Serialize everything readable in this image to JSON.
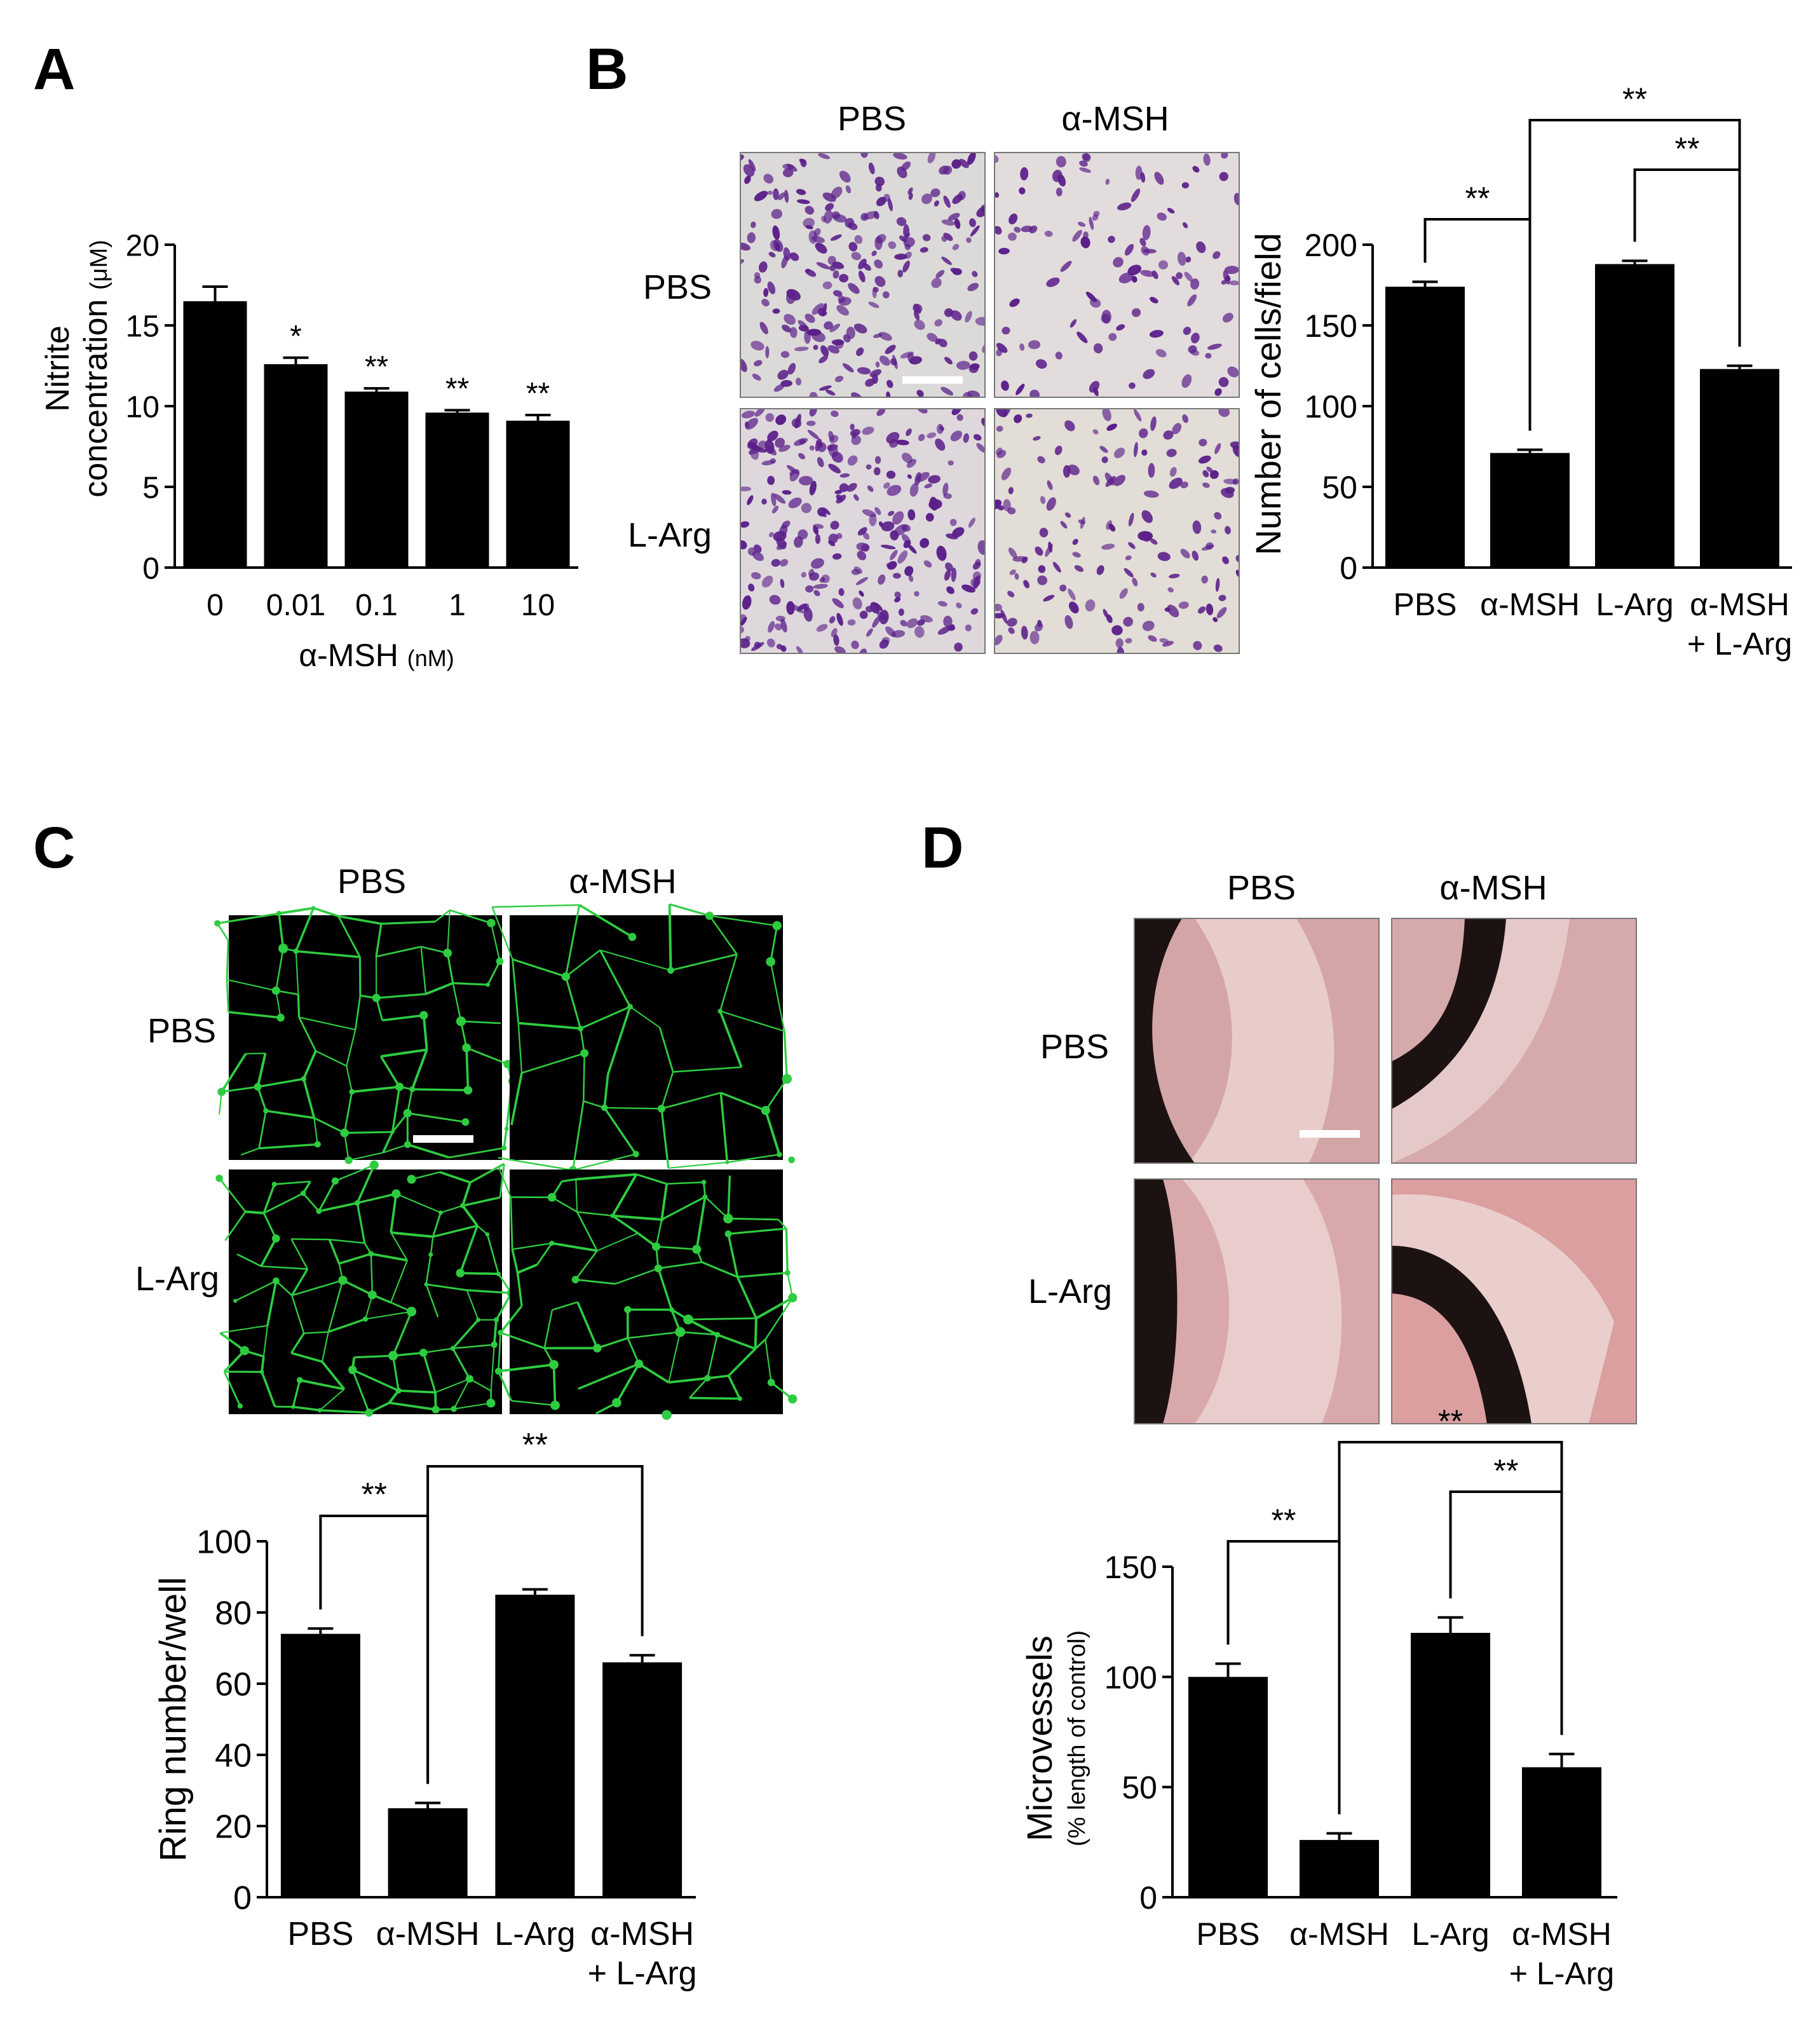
{
  "panels": {
    "A": {
      "letter": "A"
    },
    "B": {
      "letter": "B",
      "col_labels": [
        "PBS",
        "α-MSH"
      ],
      "row_labels": [
        "PBS",
        "L-Arg"
      ]
    },
    "C": {
      "letter": "C",
      "col_labels": [
        "PBS",
        "α-MSH"
      ],
      "row_labels": [
        "PBS",
        "L-Arg"
      ]
    },
    "D": {
      "letter": "D",
      "col_labels": [
        "PBS",
        "α-MSH"
      ],
      "row_labels": [
        "PBS",
        "L-Arg"
      ]
    }
  },
  "colors": {
    "bar": "#000000",
    "crystal_violet_bg": "#dcdad8",
    "crystal_violet_stain": "#5b1f8a",
    "fluorescence_bg": "#000000",
    "fluorescence_signal": "#2ecc40",
    "aortic_ring_bg": "#d9a7a7",
    "aortic_ring_tissue": "#1a1010",
    "scale_bar": "#ffffff"
  },
  "chart_data": [
    {
      "id": "A",
      "type": "bar",
      "categories": [
        "0",
        "0.01",
        "0.1",
        "1",
        "10"
      ],
      "values": [
        16.5,
        12.6,
        10.9,
        9.6,
        9.1
      ],
      "errors": [
        0.9,
        0.4,
        0.2,
        0.15,
        0.35
      ],
      "annotations": [
        "",
        "*",
        "**",
        "**",
        "**"
      ],
      "ylabel_lines": [
        "Nitrite",
        "concentration"
      ],
      "ylabel_unit": "(μM)",
      "xlabel": "α-MSH",
      "xlabel_unit": "(nM)",
      "ylim": [
        0,
        20
      ],
      "yticks": [
        0,
        5,
        10,
        15,
        20
      ]
    },
    {
      "id": "B",
      "type": "bar",
      "categories": [
        [
          "PBS"
        ],
        [
          "α-MSH"
        ],
        [
          "L-Arg"
        ],
        [
          "α-MSH",
          "+ L-Arg"
        ]
      ],
      "values": [
        174,
        71,
        188,
        123
      ],
      "errors": [
        3,
        2,
        2,
        2
      ],
      "ylabel": "Number of cells/field",
      "ylim": [
        0,
        200
      ],
      "yticks": [
        0,
        50,
        100,
        150,
        200
      ],
      "brackets": [
        {
          "from": 0,
          "to": 1,
          "label": "**",
          "level": 0
        },
        {
          "from": 2,
          "to": 3,
          "label": "**",
          "level": 1
        },
        {
          "from": 1,
          "to": 3,
          "label": "**",
          "level": 2
        }
      ]
    },
    {
      "id": "C",
      "type": "bar",
      "categories": [
        [
          "PBS"
        ],
        [
          "α-MSH"
        ],
        [
          "L-Arg"
        ],
        [
          "α-MSH",
          "+ L-Arg"
        ]
      ],
      "values": [
        74,
        25,
        85,
        66
      ],
      "errors": [
        1.5,
        1.5,
        1.5,
        2
      ],
      "ylabel": "Ring number/well",
      "ylim": [
        0,
        100
      ],
      "yticks": [
        0,
        20,
        40,
        60,
        80,
        100
      ],
      "brackets": [
        {
          "from": 0,
          "to": 1,
          "label": "**",
          "level": 0
        },
        {
          "from": 1,
          "to": 3,
          "label": "**",
          "level": 1
        }
      ]
    },
    {
      "id": "D",
      "type": "bar",
      "categories": [
        [
          "PBS"
        ],
        [
          "α-MSH"
        ],
        [
          "L-Arg"
        ],
        [
          "α-MSH",
          "+ L-Arg"
        ]
      ],
      "values": [
        100,
        26,
        120,
        59
      ],
      "errors": [
        6,
        3,
        7,
        6
      ],
      "ylabel": "Microvessels",
      "ylabel_sub": "(% length of control)",
      "ylim": [
        0,
        150
      ],
      "yticks": [
        0,
        50,
        100,
        150
      ],
      "brackets": [
        {
          "from": 0,
          "to": 1,
          "label": "**",
          "level": 0
        },
        {
          "from": 2,
          "to": 3,
          "label": "**",
          "level": 1
        },
        {
          "from": 1,
          "to": 3,
          "label": "**",
          "level": 2
        }
      ]
    }
  ]
}
